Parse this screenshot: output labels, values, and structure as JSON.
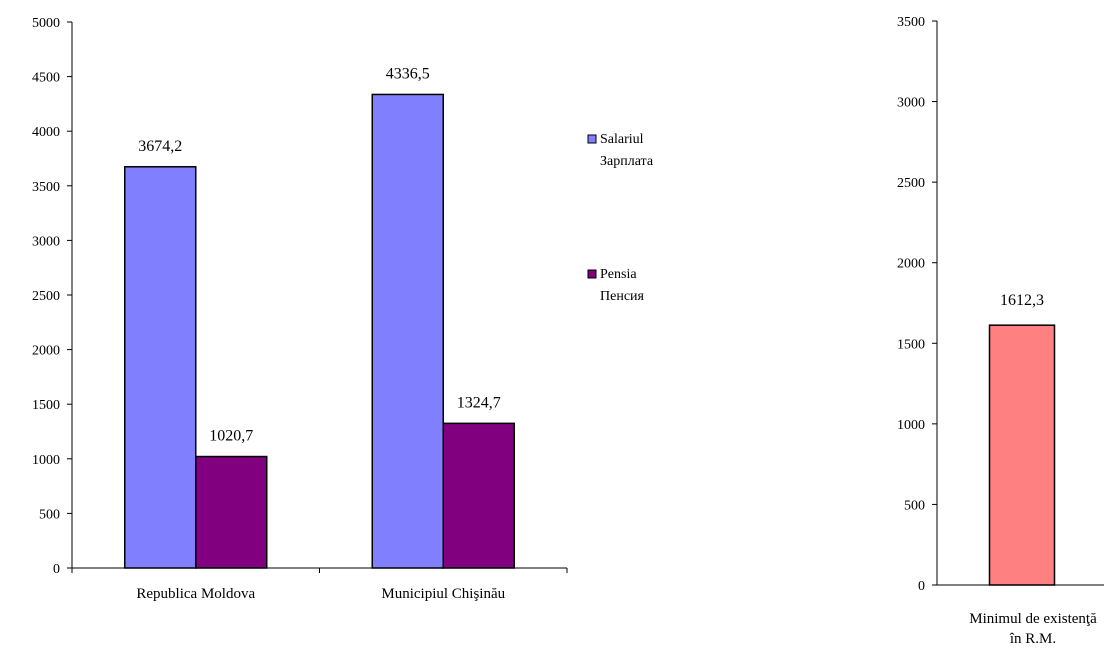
{
  "chart_data": [
    {
      "type": "bar",
      "categories": [
        "Republica Moldova",
        "Municipiul Chişinău"
      ],
      "series": [
        {
          "name": "Salariul\nЗарплата",
          "name_lines": [
            "Salariul",
            "Зарплата"
          ],
          "values": [
            3674.2,
            4336.5
          ],
          "color": "#8080FF"
        },
        {
          "name": "Pensia\nПенсия",
          "name_lines": [
            "Pensia",
            "Пенсия"
          ],
          "values": [
            1020.7,
            1324.7
          ],
          "color": "#800080"
        }
      ],
      "data_labels": [
        [
          "3674,2",
          "4336,5"
        ],
        [
          "1020,7",
          "1324,7"
        ]
      ],
      "ylim": [
        0,
        5000
      ],
      "yticks": [
        0,
        500,
        1000,
        1500,
        2000,
        2500,
        3000,
        3500,
        4000,
        4500,
        5000
      ],
      "grid": false,
      "legend": "right"
    },
    {
      "type": "bar",
      "categories": [
        "Minimul de existenţă în R.M."
      ],
      "category_lines": [
        "Minimul de existenţă",
        "în R.M."
      ],
      "series": [
        {
          "values": [
            1612.3
          ],
          "color": "#FF8080"
        }
      ],
      "data_labels": [
        [
          "1612,3"
        ]
      ],
      "ylim": [
        0,
        3500
      ],
      "yticks": [
        0,
        500,
        1000,
        1500,
        2000,
        2500,
        3000,
        3500
      ],
      "grid": false,
      "legend": "none"
    }
  ]
}
